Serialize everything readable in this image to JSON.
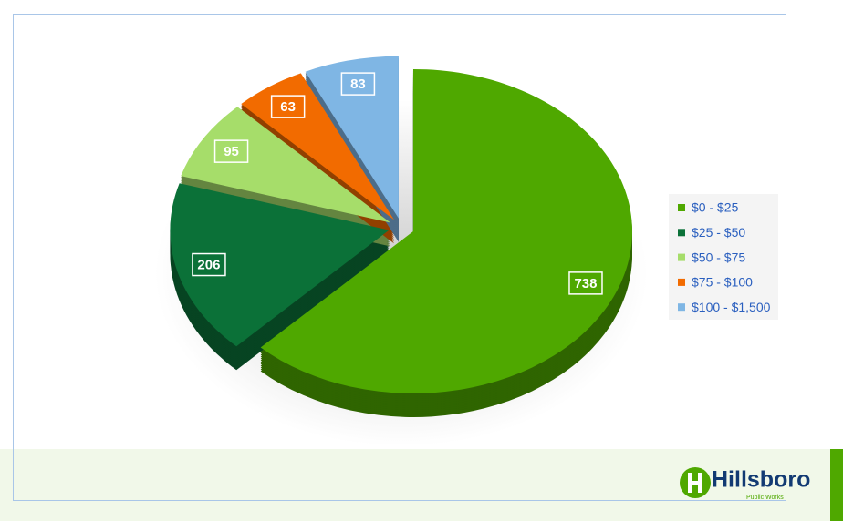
{
  "chart_data": {
    "type": "pie",
    "categories": [
      "$0 - $25",
      "$25 - $50",
      "$50 - $75",
      "$75 - $100",
      "$100 - $1,500"
    ],
    "values": [
      738,
      206,
      95,
      63,
      83
    ],
    "colors": [
      "#4fa800",
      "#0b7138",
      "#a6dd6a",
      "#f26b00",
      "#7fb6e4"
    ],
    "legend": "right"
  },
  "logo": {
    "name": "Hillsboro",
    "subtitle": "Public Works"
  }
}
